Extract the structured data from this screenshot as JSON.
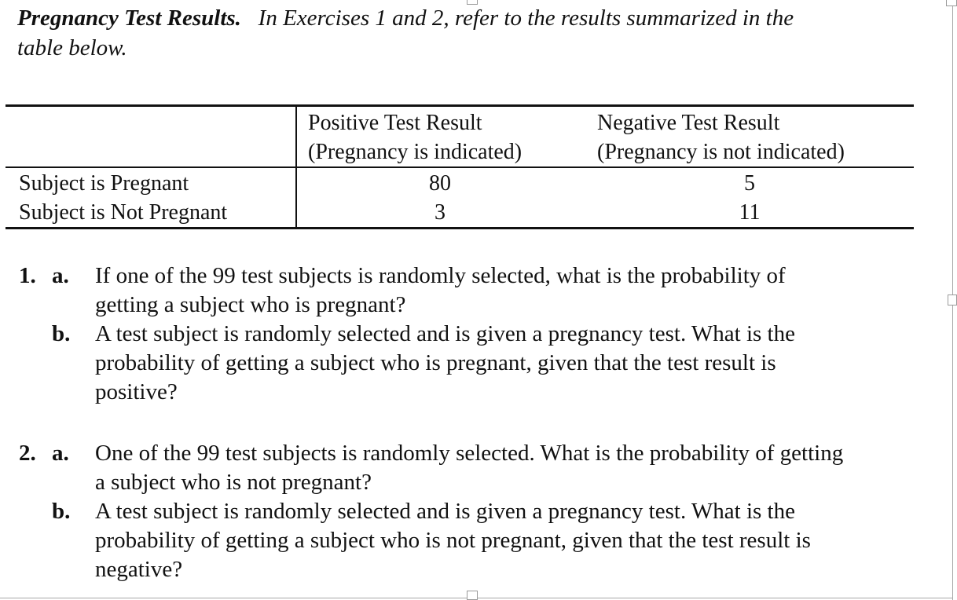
{
  "heading": {
    "title": "Pregnancy Test Results.",
    "intro_line1": "In Exercises 1 and 2, refer to the results summarized in the",
    "intro_line2": "table below."
  },
  "table": {
    "columns": [
      {
        "line1": "Positive Test Result",
        "line2": "(Pregnancy is indicated)"
      },
      {
        "line1": "Negative Test Result",
        "line2": "(Pregnancy is not indicated)"
      }
    ],
    "rows": [
      {
        "label": "Subject is Pregnant",
        "values": [
          "80",
          "5"
        ]
      },
      {
        "label": "Subject is Not Pregnant",
        "values": [
          "3",
          "11"
        ]
      }
    ]
  },
  "exercises": [
    {
      "number": "1.",
      "parts": [
        {
          "letter": "a.",
          "lines": [
            "If one of the 99 test subjects is randomly selected, what is the probability of",
            "getting a subject who is pregnant?"
          ]
        },
        {
          "letter": "b.",
          "lines": [
            "A test subject is randomly selected and is given a pregnancy test. What is the",
            "probability of getting a subject who is pregnant, given that the test result is",
            "positive?"
          ]
        }
      ]
    },
    {
      "number": "2.",
      "parts": [
        {
          "letter": "a.",
          "lines": [
            "One of the 99 test subjects is randomly selected. What is the probability of getting",
            "a subject who is not pregnant?"
          ]
        },
        {
          "letter": "b.",
          "lines": [
            "A test subject is randomly selected and is given a pregnancy test. What is the",
            "probability of getting a subject who is not pregnant, given that the test result is",
            "negative?"
          ]
        }
      ]
    }
  ]
}
